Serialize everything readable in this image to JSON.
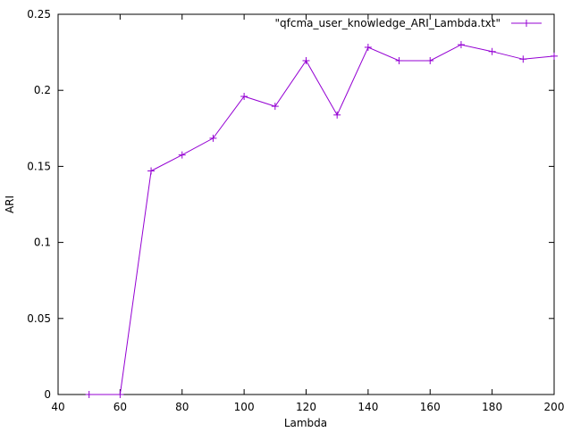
{
  "chart_data": {
    "type": "line",
    "title": "",
    "xlabel": "Lambda",
    "ylabel": "ARI",
    "xlim": [
      40,
      200
    ],
    "ylim": [
      0,
      0.25
    ],
    "x_ticks": [
      40,
      60,
      80,
      100,
      120,
      140,
      160,
      180,
      200
    ],
    "x_tick_labels": [
      "40",
      "60",
      "80",
      "100",
      "120",
      "140",
      "160",
      "180",
      "200"
    ],
    "y_ticks": [
      0,
      0.05,
      0.1,
      0.15,
      0.2,
      0.25
    ],
    "y_tick_labels": [
      "0",
      "0.05",
      "0.1",
      "0.15",
      "0.2",
      "0.25"
    ],
    "grid": false,
    "legend_position": "top-right",
    "series": [
      {
        "name": "\"qfcma_user_knowledge_ARI_Lambda.txt\"",
        "color": "#9400d3",
        "marker": "plus",
        "x": [
          50,
          60,
          70,
          80,
          90,
          100,
          110,
          120,
          130,
          140,
          150,
          160,
          170,
          180,
          190,
          200
        ],
        "y": [
          0,
          0,
          0.147,
          0.1575,
          0.1685,
          0.196,
          0.1895,
          0.2195,
          0.1838,
          0.2283,
          0.2195,
          0.2195,
          0.23,
          0.2255,
          0.2205,
          0.2225
        ]
      }
    ]
  }
}
